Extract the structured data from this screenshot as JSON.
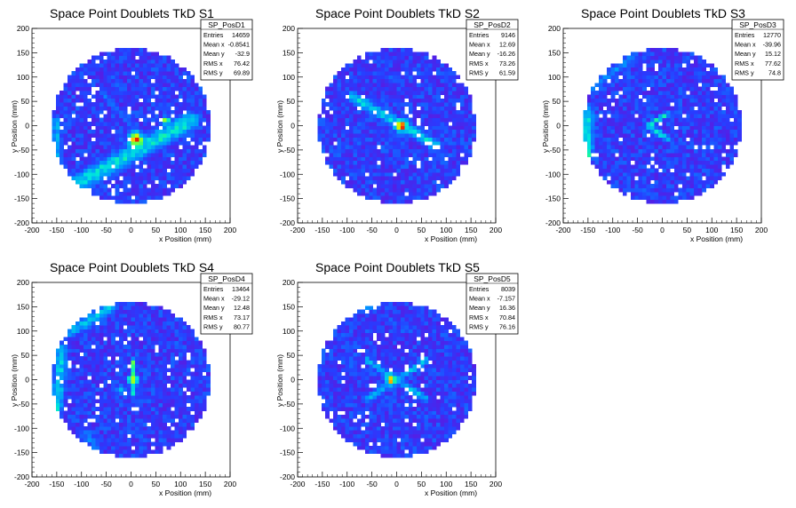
{
  "chart_data": [
    {
      "type": "heatmap",
      "title": "Space Point Doublets TkD S1",
      "xlabel": "x Position (mm)",
      "ylabel": "y Position (mm)",
      "xlim": [
        -200,
        200
      ],
      "ylim": [
        -200,
        200
      ],
      "xticks": [
        -200,
        -150,
        -100,
        -50,
        0,
        50,
        100,
        150,
        200
      ],
      "yticks": [
        -200,
        -150,
        -100,
        -50,
        0,
        50,
        100,
        150,
        200
      ],
      "detector_radius": 160,
      "stats": {
        "name": "SP_PosD1",
        "rows": [
          [
            "Entries",
            "14659"
          ],
          [
            "Mean x",
            "-0.8541"
          ],
          [
            "Mean y",
            "-32.9"
          ],
          [
            "RMS x",
            "76.42"
          ],
          [
            "RMS y",
            "69.89"
          ]
        ]
      },
      "features": [
        {
          "kind": "line",
          "x1": -110,
          "y1": -120,
          "x2": 120,
          "y2": 10,
          "width": 25,
          "level": 0.55
        },
        {
          "kind": "line",
          "x1": -150,
          "y1": 10,
          "x2": -150,
          "y2": -60,
          "width": 14,
          "level": 0.45
        },
        {
          "kind": "line",
          "x1": -60,
          "y1": 70,
          "x2": 20,
          "y2": -20,
          "width": 10,
          "level": 0.3
        },
        {
          "kind": "blob",
          "x": 10,
          "y": -30,
          "r": 22,
          "level": 0.95
        },
        {
          "kind": "blob",
          "x": 70,
          "y": 10,
          "r": 12,
          "level": 0.75
        }
      ]
    },
    {
      "type": "heatmap",
      "title": "Space Point Doublets TkD S2",
      "xlabel": "x Position (mm)",
      "ylabel": "y Position (mm)",
      "xlim": [
        -200,
        200
      ],
      "ylim": [
        -200,
        200
      ],
      "xticks": [
        -200,
        -150,
        -100,
        -50,
        0,
        50,
        100,
        150,
        200
      ],
      "yticks": [
        -200,
        -150,
        -100,
        -50,
        0,
        50,
        100,
        150,
        200
      ],
      "detector_radius": 160,
      "stats": {
        "name": "SP_PosD2",
        "rows": [
          [
            "Entries",
            "9146"
          ],
          [
            "Mean x",
            "12.69"
          ],
          [
            "Mean y",
            "-16.26"
          ],
          [
            "RMS x",
            "73.26"
          ],
          [
            "RMS y",
            "61.59"
          ]
        ]
      },
      "features": [
        {
          "kind": "line",
          "x1": -90,
          "y1": 60,
          "x2": 80,
          "y2": -40,
          "width": 16,
          "level": 0.5
        },
        {
          "kind": "blob",
          "x": 10,
          "y": 0,
          "r": 18,
          "level": 0.95
        }
      ]
    },
    {
      "type": "heatmap",
      "title": "Space Point Doublets TkD S3",
      "xlabel": "x Position (mm)",
      "ylabel": "y Position (mm)",
      "xlim": [
        -200,
        200
      ],
      "ylim": [
        -200,
        200
      ],
      "xticks": [
        -200,
        -150,
        -100,
        -50,
        0,
        50,
        100,
        150,
        200
      ],
      "yticks": [
        -200,
        -150,
        -100,
        -50,
        0,
        50,
        100,
        150,
        200
      ],
      "detector_radius": 160,
      "stats": {
        "name": "SP_PosD3",
        "rows": [
          [
            "Entries",
            "12770"
          ],
          [
            "Mean x",
            "-39.96"
          ],
          [
            "Mean y",
            "15.12"
          ],
          [
            "RMS x",
            "77.62"
          ],
          [
            "RMS y",
            "74.8"
          ]
        ]
      },
      "features": [
        {
          "kind": "line",
          "x1": -150,
          "y1": 30,
          "x2": -150,
          "y2": -60,
          "width": 16,
          "level": 0.55
        },
        {
          "kind": "line",
          "x1": -140,
          "y1": 80,
          "x2": -60,
          "y2": 140,
          "width": 14,
          "level": 0.35
        },
        {
          "kind": "line",
          "x1": -30,
          "y1": 0,
          "x2": 10,
          "y2": 25,
          "width": 8,
          "level": 0.55
        },
        {
          "kind": "line",
          "x1": -30,
          "y1": 0,
          "x2": 10,
          "y2": -25,
          "width": 8,
          "level": 0.55
        },
        {
          "kind": "blob",
          "x": -140,
          "y": -60,
          "r": 8,
          "level": 0.85
        }
      ]
    },
    {
      "type": "heatmap",
      "title": "Space Point Doublets TkD S4",
      "xlabel": "x Position (mm)",
      "ylabel": "y Position (mm)",
      "xlim": [
        -200,
        200
      ],
      "ylim": [
        -200,
        200
      ],
      "xticks": [
        -200,
        -150,
        -100,
        -50,
        0,
        50,
        100,
        150,
        200
      ],
      "yticks": [
        -200,
        -150,
        -100,
        -50,
        0,
        50,
        100,
        150,
        200
      ],
      "detector_radius": 160,
      "stats": {
        "name": "SP_PosD4",
        "rows": [
          [
            "Entries",
            "13464"
          ],
          [
            "Mean x",
            "-29.12"
          ],
          [
            "Mean y",
            "12.48"
          ],
          [
            "RMS x",
            "73.17"
          ],
          [
            "RMS y",
            "80.77"
          ]
        ]
      },
      "features": [
        {
          "kind": "line",
          "x1": -140,
          "y1": 60,
          "x2": -150,
          "y2": -60,
          "width": 18,
          "level": 0.5
        },
        {
          "kind": "line",
          "x1": -120,
          "y1": 100,
          "x2": -40,
          "y2": 150,
          "width": 18,
          "level": 0.45
        },
        {
          "kind": "line",
          "x1": -90,
          "y1": -110,
          "x2": -70,
          "y2": -140,
          "width": 14,
          "level": 0.35
        },
        {
          "kind": "line",
          "x1": 5,
          "y1": 40,
          "x2": 5,
          "y2": -30,
          "width": 7,
          "level": 0.65
        },
        {
          "kind": "blob",
          "x": 5,
          "y": 0,
          "r": 14,
          "level": 0.95
        },
        {
          "kind": "blob",
          "x": -20,
          "y": -20,
          "r": 14,
          "level": 0.45
        }
      ]
    },
    {
      "type": "heatmap",
      "title": "Space Point Doublets TkD S5",
      "xlabel": "x Position (mm)",
      "ylabel": "y Position (mm)",
      "xlim": [
        -200,
        200
      ],
      "ylim": [
        -200,
        200
      ],
      "xticks": [
        -200,
        -150,
        -100,
        -50,
        0,
        50,
        100,
        150,
        200
      ],
      "yticks": [
        -200,
        -150,
        -100,
        -50,
        0,
        50,
        100,
        150,
        200
      ],
      "detector_radius": 160,
      "stats": {
        "name": "SP_PosD5",
        "rows": [
          [
            "Entries",
            "8039"
          ],
          [
            "Mean x",
            "-7.157"
          ],
          [
            "Mean y",
            "16.36"
          ],
          [
            "RMS x",
            "70.84"
          ],
          [
            "RMS y",
            "76.16"
          ]
        ]
      },
      "features": [
        {
          "kind": "line",
          "x1": -60,
          "y1": -40,
          "x2": 60,
          "y2": 40,
          "width": 10,
          "level": 0.45
        },
        {
          "kind": "line",
          "x1": -60,
          "y1": 40,
          "x2": 60,
          "y2": -40,
          "width": 10,
          "level": 0.45
        },
        {
          "kind": "line",
          "x1": -110,
          "y1": 140,
          "x2": -40,
          "y2": 150,
          "width": 12,
          "level": 0.35
        },
        {
          "kind": "blob",
          "x": -10,
          "y": 0,
          "r": 16,
          "level": 0.95
        }
      ]
    }
  ]
}
